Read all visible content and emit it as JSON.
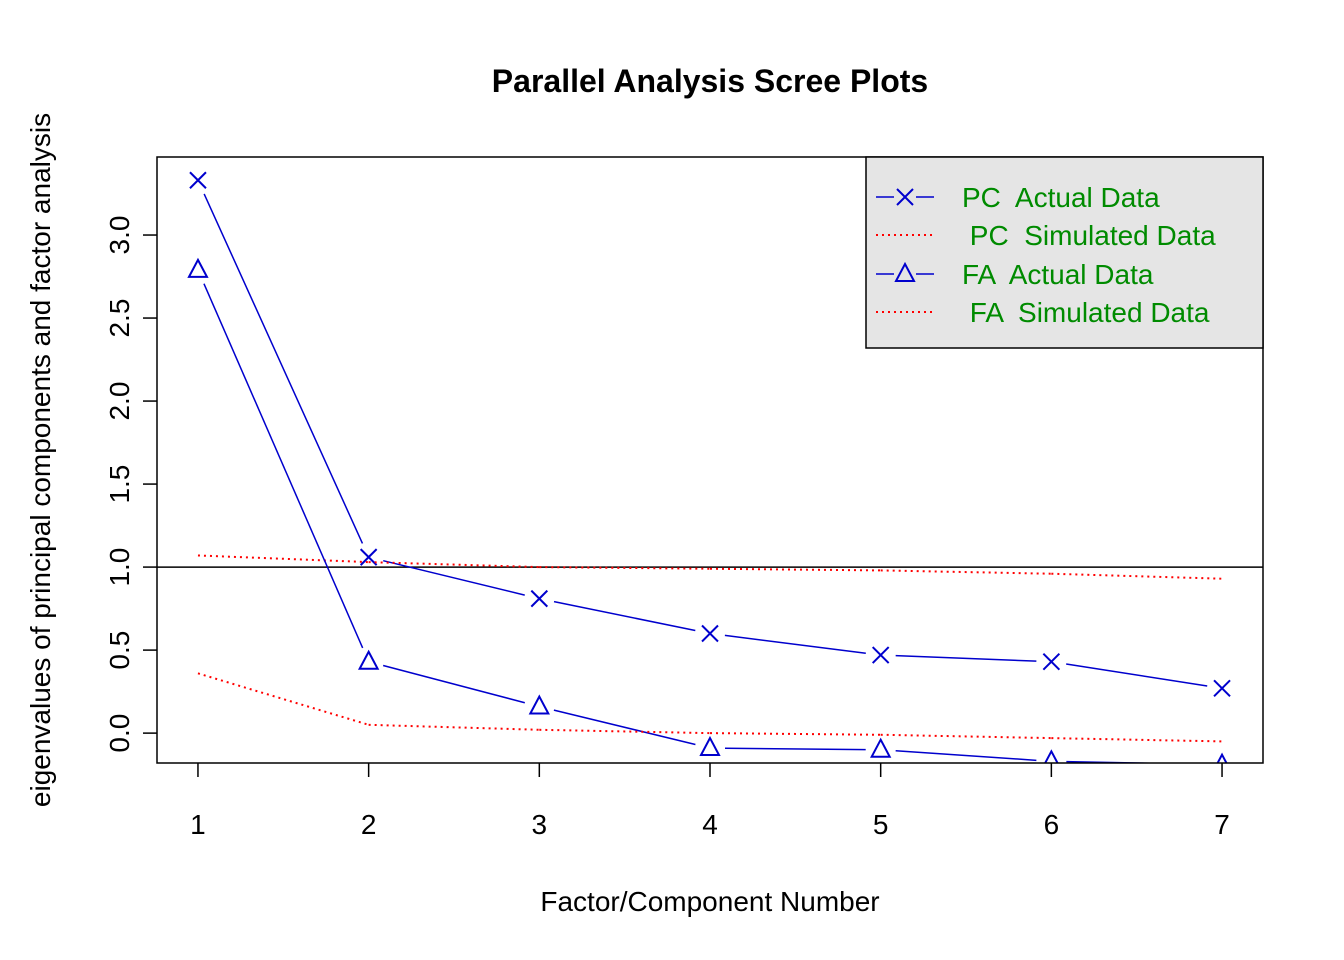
{
  "chart_data": {
    "type": "line",
    "title": "Parallel Analysis Scree Plots",
    "xlabel": "Factor/Component Number",
    "ylabel": "eigenvalues of principal components and factor analysis",
    "x": [
      1,
      2,
      3,
      4,
      5,
      6,
      7
    ],
    "xticks": [
      "1",
      "2",
      "3",
      "4",
      "5",
      "6",
      "7"
    ],
    "yticks": [
      "0.0",
      "0.5",
      "1.0",
      "1.5",
      "2.0",
      "2.5",
      "3.0"
    ],
    "xlim": [
      0.76,
      7.24
    ],
    "ylim": [
      -0.18,
      3.47
    ],
    "reference_line": 1.0,
    "series": [
      {
        "name": "PC  Actual Data",
        "values": [
          3.33,
          1.06,
          0.81,
          0.6,
          0.47,
          0.43,
          0.27
        ],
        "color": "#0000CD",
        "style": "solid",
        "marker": "x"
      },
      {
        "name": " PC  Simulated Data",
        "values": [
          1.07,
          1.03,
          1.0,
          0.99,
          0.98,
          0.96,
          0.93
        ],
        "color": "#FF0000",
        "style": "dotted",
        "marker": "none"
      },
      {
        "name": "FA  Actual Data",
        "values": [
          2.79,
          0.43,
          0.16,
          -0.09,
          -0.1,
          -0.17,
          -0.19
        ],
        "color": "#0000CD",
        "style": "solid",
        "marker": "triangle"
      },
      {
        "name": " FA  Simulated Data",
        "values": [
          0.36,
          0.05,
          0.02,
          0.0,
          -0.01,
          -0.03,
          -0.05
        ],
        "color": "#FF0000",
        "style": "dotted",
        "marker": "none"
      }
    ],
    "legend": {
      "placement": "top-right",
      "background": "#E5E5E5",
      "text_color": "#008B00"
    },
    "grid": false
  }
}
